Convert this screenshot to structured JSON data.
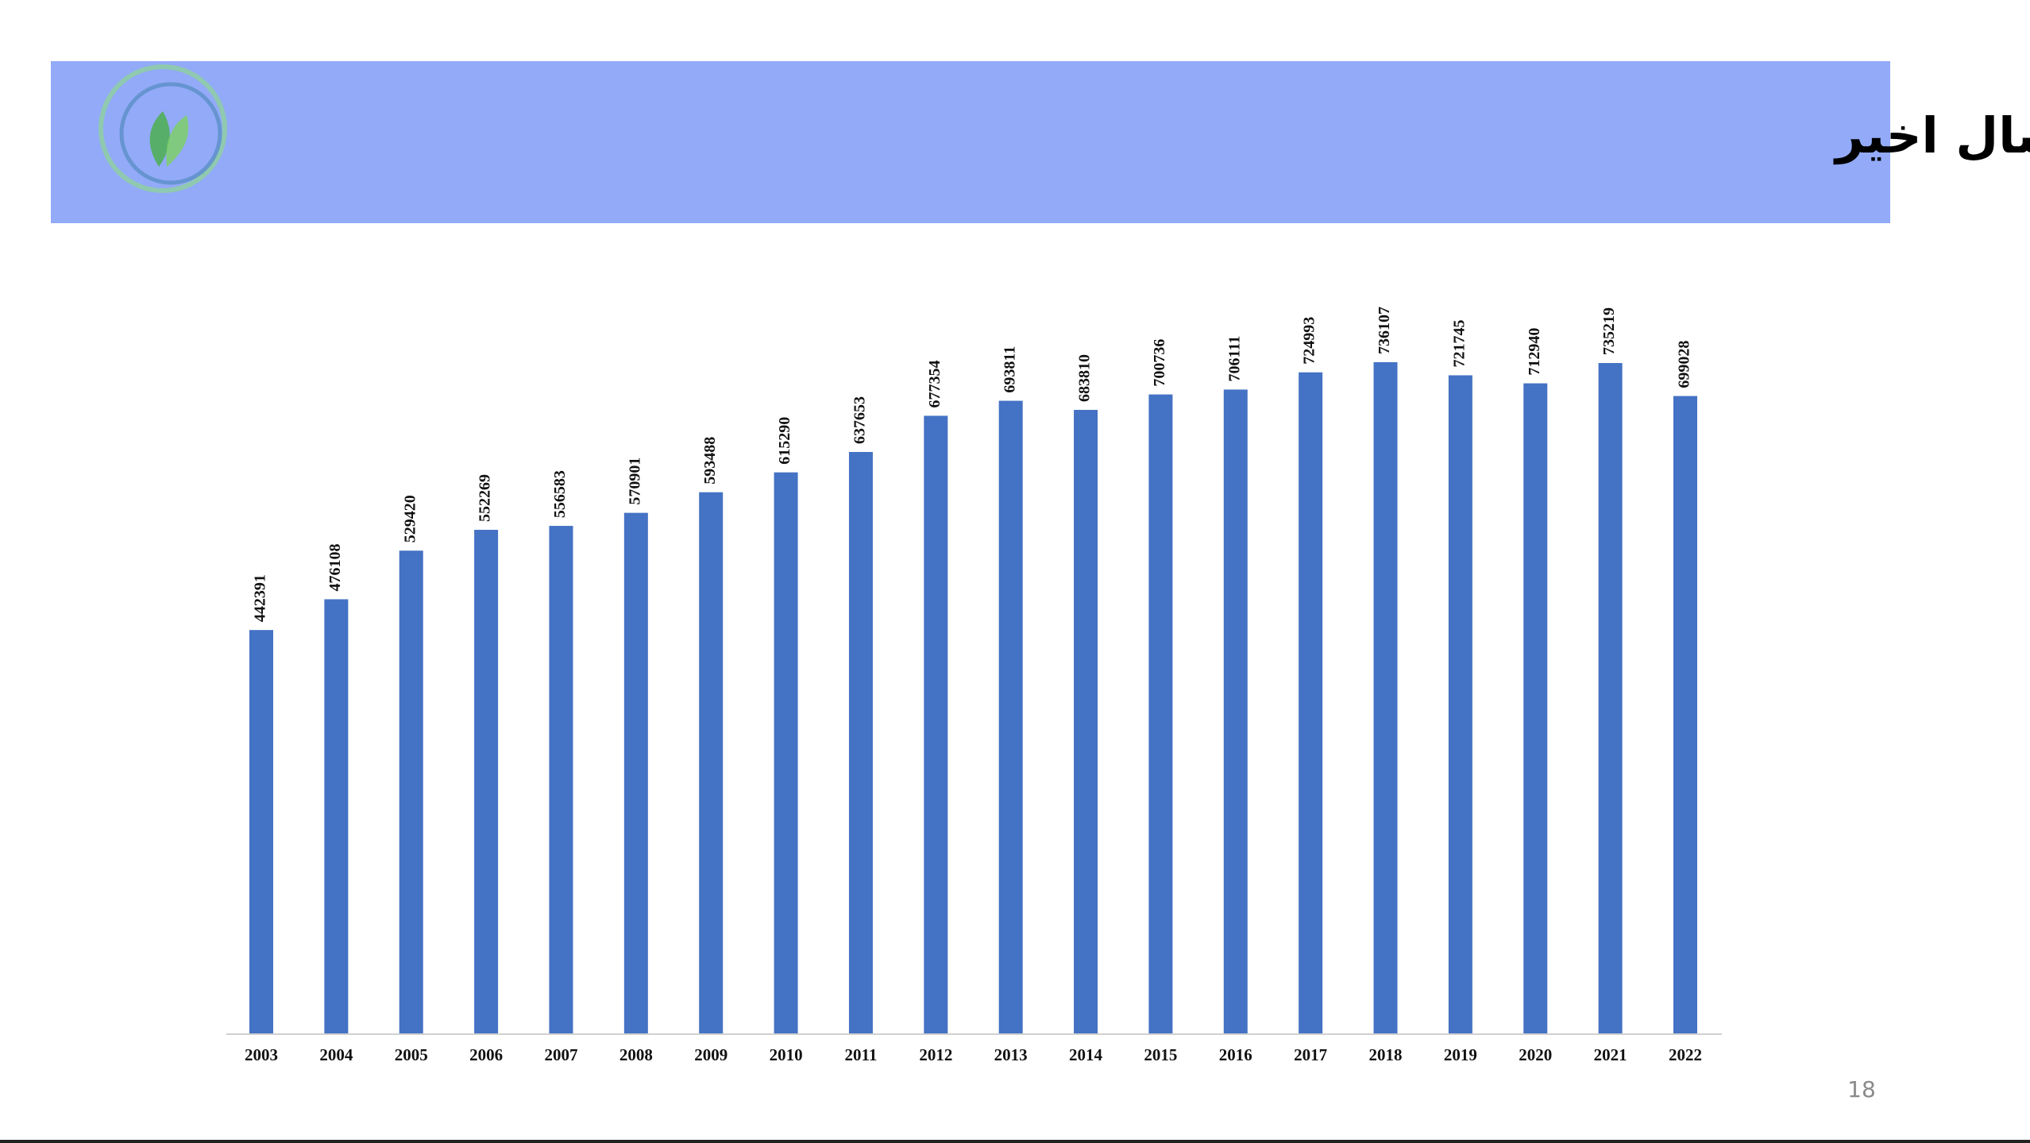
{
  "chart_data": {
    "type": "bar",
    "title": "تعداد مقالات ایالات متحده در پایگاه اسکوپوس در طی بیست سال اخیر",
    "categories": [
      "2003",
      "2004",
      "2005",
      "2006",
      "2007",
      "2008",
      "2009",
      "2010",
      "2011",
      "2012",
      "2013",
      "2014",
      "2015",
      "2016",
      "2017",
      "2018",
      "2019",
      "2020",
      "2021",
      "2022"
    ],
    "values": [
      442391,
      476108,
      529420,
      552269,
      556583,
      570901,
      593488,
      615290,
      637653,
      677354,
      693811,
      683810,
      700736,
      706111,
      724993,
      736107,
      721745,
      712940,
      735219,
      699028
    ],
    "color": "#4472c4"
  },
  "page_number": "18"
}
